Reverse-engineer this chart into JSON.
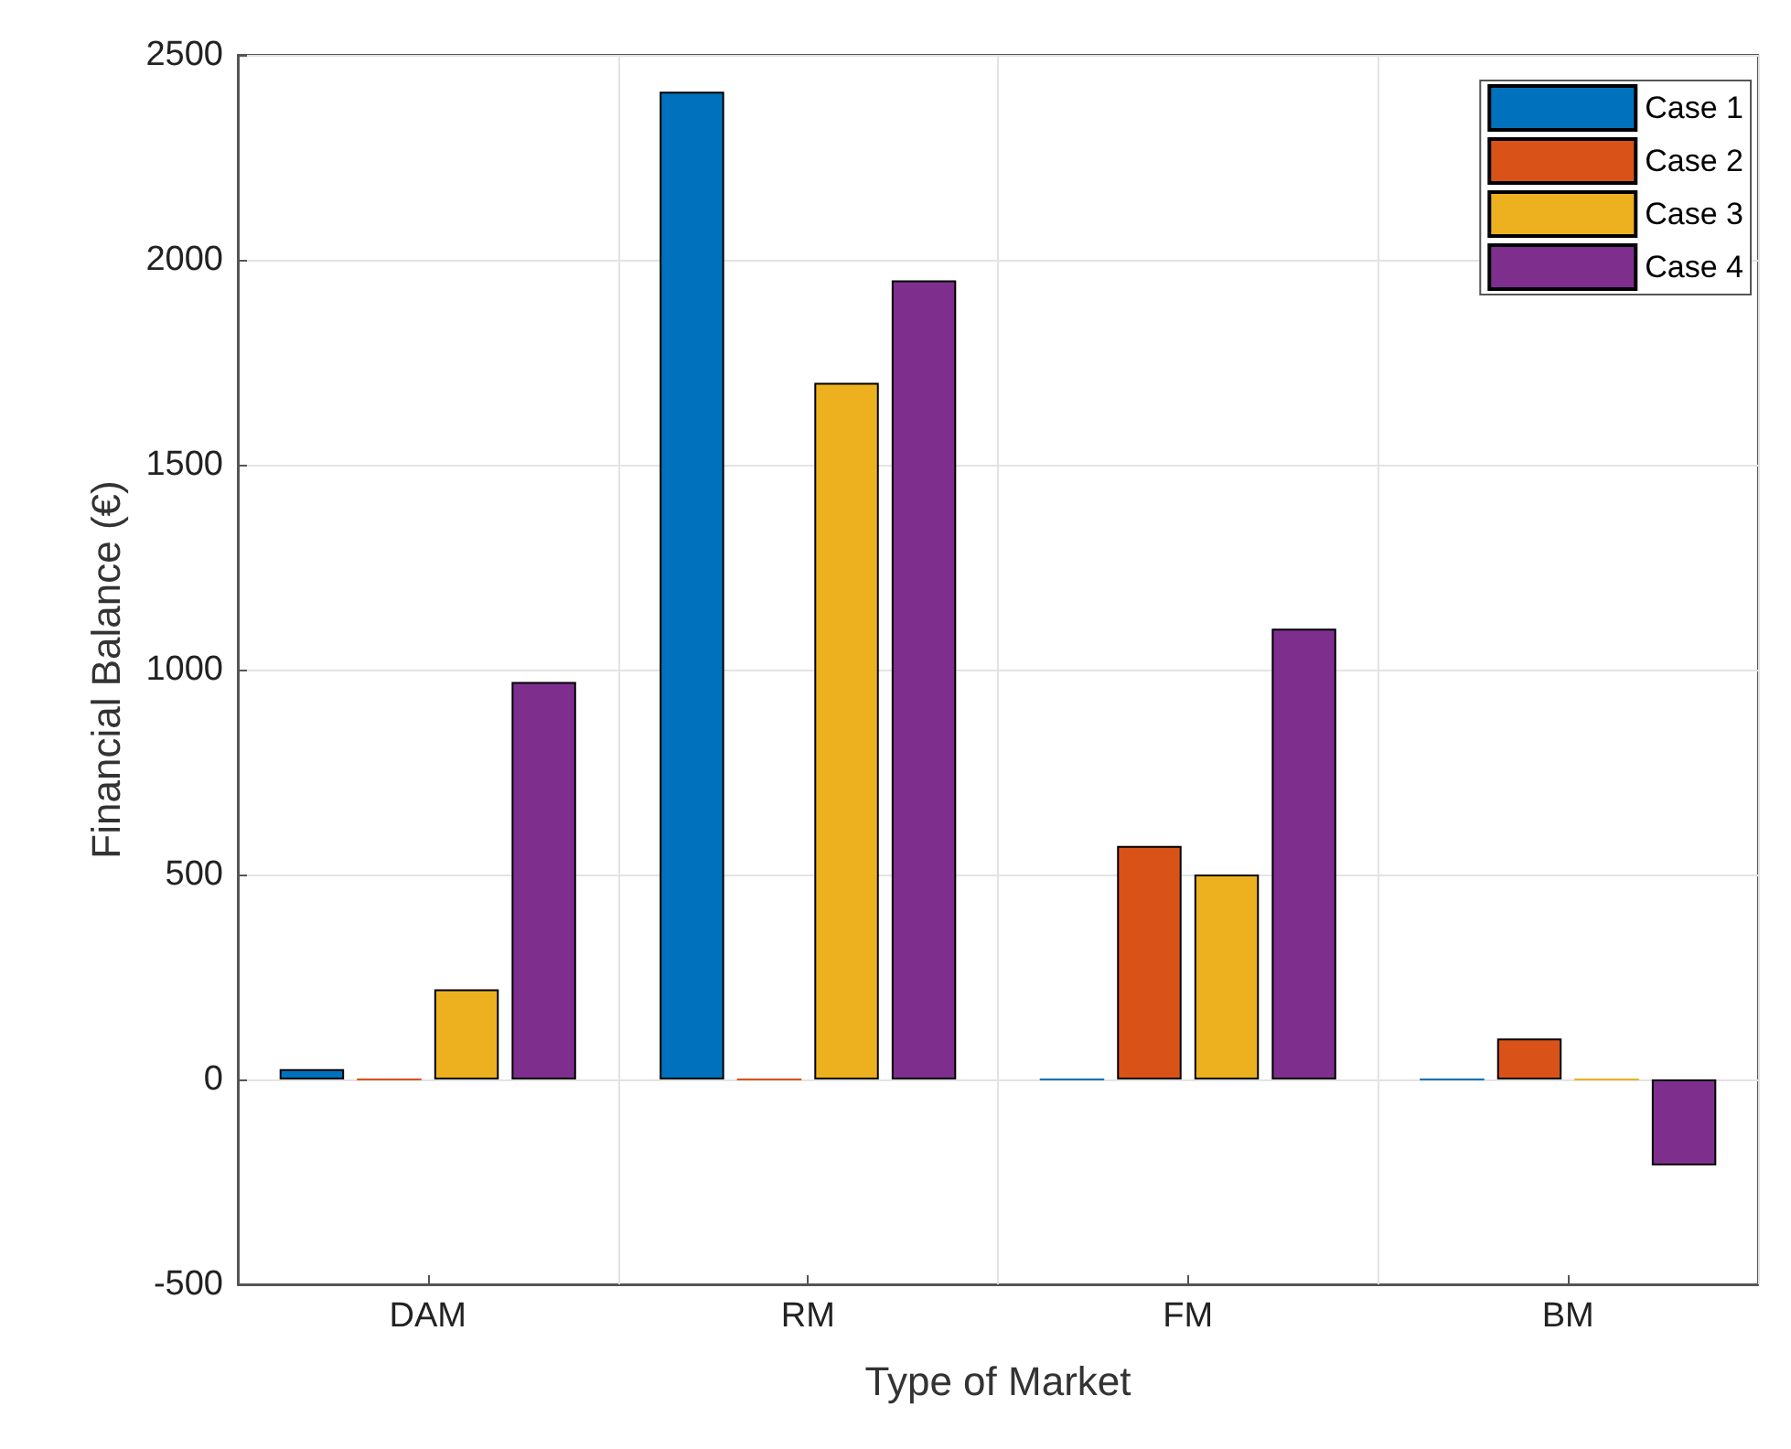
{
  "chart_data": {
    "type": "bar",
    "xlabel": "Type of Market",
    "ylabel": "Financial Balance (€)",
    "categories": [
      "DAM",
      "RM",
      "FM",
      "BM"
    ],
    "series": [
      {
        "name": "Case 1",
        "color": "#0072bd",
        "values": [
          25,
          2410,
          0,
          0
        ]
      },
      {
        "name": "Case 2",
        "color": "#d95319",
        "values": [
          0,
          0,
          570,
          100
        ]
      },
      {
        "name": "Case 3",
        "color": "#edb120",
        "values": [
          220,
          1700,
          500,
          0
        ]
      },
      {
        "name": "Case 4",
        "color": "#7e2f8e",
        "values": [
          970,
          1950,
          1100,
          -210
        ]
      }
    ],
    "ylim": [
      -500,
      2500
    ],
    "yticks": [
      -500,
      0,
      500,
      1000,
      1500,
      2000,
      2500
    ],
    "grid": true,
    "legend": "top right"
  }
}
